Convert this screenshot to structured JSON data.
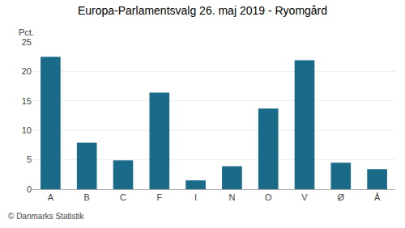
{
  "chart_data": {
    "type": "bar",
    "title": "Europa-Parlamentsvalg 26. maj 2019 - Ryomgård",
    "categories": [
      "A",
      "B",
      "C",
      "F",
      "I",
      "N",
      "O",
      "V",
      "Ø",
      "Å"
    ],
    "values": [
      22.5,
      7.9,
      4.9,
      16.4,
      1.5,
      3.9,
      13.7,
      21.9,
      4.5,
      3.4
    ],
    "color": "#1a6b8a",
    "ylabel": "Pct.",
    "ylim": [
      0,
      25
    ],
    "yticks": [
      0,
      5,
      10,
      15,
      20,
      25
    ],
    "grid": true,
    "annotations": [
      "© Danmarks Statistik"
    ]
  }
}
